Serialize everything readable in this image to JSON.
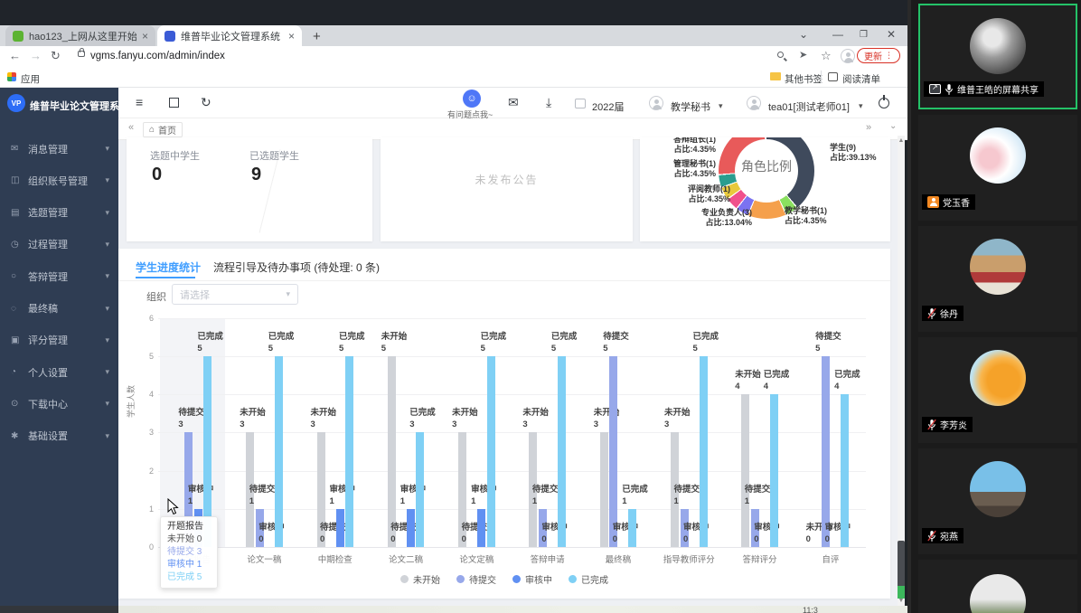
{
  "browser": {
    "tabs": [
      {
        "title": "hao123_上网从这里开始"
      },
      {
        "title": "维普毕业论文管理系统"
      }
    ],
    "url": "vgms.fanyu.com/admin/index",
    "update_label": "更新",
    "bookmarks": {
      "apps": "应用",
      "other": "其他书签",
      "reading_list": "阅读清单"
    }
  },
  "app": {
    "title": "维普毕业论文管理系统",
    "logo_glyph": "VP",
    "sidebar": {
      "items": [
        {
          "label": "消息管理",
          "icon": "message-icon",
          "glyph": "✉"
        },
        {
          "label": "组织账号管理",
          "icon": "organization-account-icon",
          "glyph": "◫"
        },
        {
          "label": "选题管理",
          "icon": "topic-icon",
          "glyph": "▤"
        },
        {
          "label": "过程管理",
          "icon": "process-icon",
          "glyph": "◷"
        },
        {
          "label": "答辩管理",
          "icon": "defense-icon",
          "glyph": "○"
        },
        {
          "label": "最终稿",
          "icon": "final-draft-icon",
          "glyph": "◌"
        },
        {
          "label": "评分管理",
          "icon": "score-icon",
          "glyph": "▣"
        },
        {
          "label": "个人设置",
          "icon": "personal-settings-icon",
          "glyph": "◔"
        },
        {
          "label": "下载中心",
          "icon": "download-center-icon",
          "glyph": "⊙"
        },
        {
          "label": "基础设置",
          "icon": "basic-settings-icon",
          "glyph": "✱"
        }
      ]
    },
    "header": {
      "help_label": "有问题点我~",
      "year": "2022届",
      "role": "教学秘书",
      "user": "tea01[测试老师01]"
    },
    "breadcrumb": "首页",
    "stats": [
      {
        "label": "选题中学生",
        "value": "0"
      },
      {
        "label": "已选题学生",
        "value": "9"
      }
    ],
    "announcement": "未发布公告",
    "tabs": [
      {
        "label": "学生进度统计"
      },
      {
        "label": "流程引导及待办事项 (待处理: 0 条)"
      }
    ],
    "org_label": "组织",
    "org_placeholder": "请选择"
  },
  "chart_data": [
    {
      "type": "pie",
      "title": "角色比例",
      "segments": [
        {
          "label": "学生(9)",
          "ratio": "占比:39.13%",
          "value": 39.13,
          "color": "#3f4a5c"
        },
        {
          "label": "教学秘书(1)",
          "ratio": "占比:4.35%",
          "value": 4.35,
          "color": "#8ae05f"
        },
        {
          "label": "专业负责人(3)",
          "ratio": "占比:13.04%",
          "value": 13.04,
          "color": "#f5a04c"
        },
        {
          "label": "评阅教师(1)",
          "ratio": "占比:4.35%",
          "value": 4.35,
          "color": "#7b72f0"
        },
        {
          "label": "管理秘书(1)",
          "ratio": "占比:4.35%",
          "value": 4.35,
          "color": "#f0508c"
        },
        {
          "label": "答辩组长(1)",
          "ratio": "占比:4.35%",
          "value": 4.35,
          "color": "#e8c93c"
        },
        {
          "label": "",
          "ratio": "",
          "value": 4.35,
          "color": "#2a9d8f"
        },
        {
          "label": "",
          "ratio": "",
          "value": 25.71,
          "color": "#e85a5a"
        }
      ]
    },
    {
      "type": "bar",
      "title": "学生进度统计",
      "ylabel": "学生人数",
      "ylim": [
        0,
        6
      ],
      "grid": true,
      "legend_position": "bottom",
      "categories": [
        "开题报告",
        "论文一稿",
        "中期检查",
        "论文二稿",
        "论文定稿",
        "答辩申请",
        "最终稿",
        "指导教师评分",
        "答辩评分",
        "自评"
      ],
      "series": [
        {
          "name": "未开始",
          "color": "#d0d3d8",
          "values": [
            0,
            3,
            3,
            5,
            3,
            3,
            3,
            3,
            4,
            0
          ]
        },
        {
          "name": "待提交",
          "color": "#97a8ea",
          "values": [
            3,
            1,
            0,
            0,
            0,
            1,
            5,
            1,
            1,
            5
          ]
        },
        {
          "name": "审核中",
          "color": "#6090f2",
          "values": [
            1,
            0,
            1,
            1,
            1,
            0,
            0,
            0,
            0,
            0
          ]
        },
        {
          "name": "已完成",
          "color": "#7fd0f5",
          "values": [
            5,
            5,
            5,
            3,
            5,
            5,
            1,
            5,
            4,
            4
          ]
        }
      ]
    }
  ],
  "tooltip": {
    "title": "开题报告",
    "rows": [
      {
        "name": "未开始",
        "value": "0",
        "color": "#555555"
      },
      {
        "name": "待提交",
        "value": "3",
        "color": "#97a8ea"
      },
      {
        "name": "审核中",
        "value": "1",
        "color": "#6090f2"
      },
      {
        "name": "已完成",
        "value": "5",
        "color": "#7fd0f5"
      }
    ]
  },
  "meeting": {
    "participants": [
      {
        "name": "维普王皓的屏幕共享",
        "status": "sharing",
        "avatar": "p1"
      },
      {
        "name": "党玉香",
        "status": "member",
        "avatar": "p2"
      },
      {
        "name": "徐丹",
        "status": "muted",
        "avatar": "p3"
      },
      {
        "name": "李芳炎",
        "status": "muted",
        "avatar": "p4"
      },
      {
        "name": "宛燕",
        "status": "muted",
        "avatar": "p5"
      },
      {
        "name": "",
        "status": "none",
        "avatar": "p6"
      }
    ]
  },
  "taskbar": {
    "clock": "11:3"
  }
}
